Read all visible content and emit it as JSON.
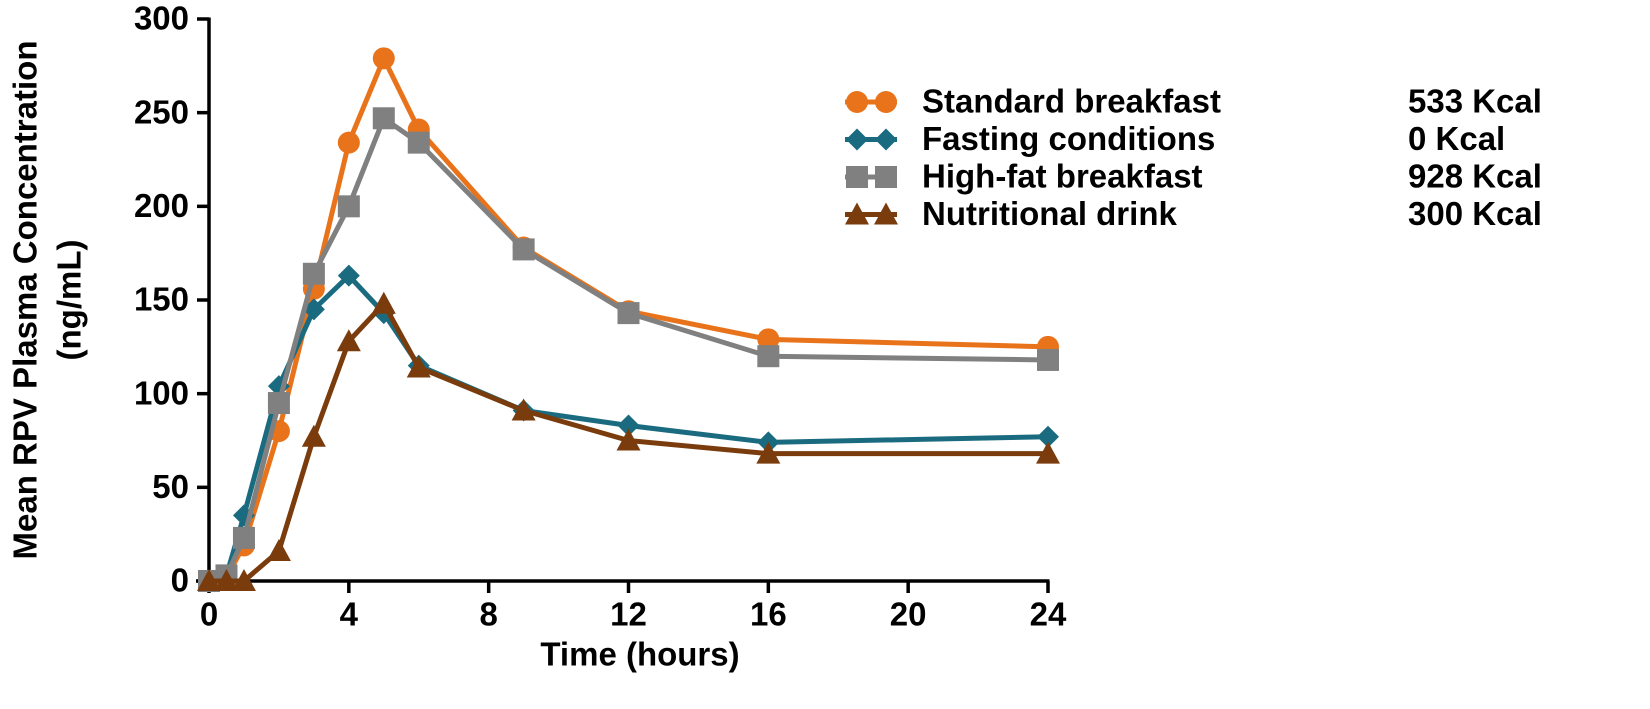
{
  "chart_data": {
    "type": "line",
    "xlabel": "Time (hours)",
    "ylabel": [
      "Mean RPV Plasma Concentration",
      "(ng/mL)"
    ],
    "xlim": [
      0,
      24
    ],
    "xticks": [
      0,
      4,
      8,
      12,
      16,
      20,
      24
    ],
    "ylim": [
      0,
      300
    ],
    "yticks": [
      0,
      50,
      100,
      150,
      200,
      250,
      300
    ],
    "x": [
      0,
      0.5,
      1,
      2,
      3,
      4,
      5,
      6,
      9,
      12,
      16,
      24
    ],
    "series": [
      {
        "name": "Standard breakfast",
        "energy": "533 Kcal",
        "color": "#e8731a",
        "marker": "circle",
        "values": [
          0,
          2,
          19,
          80,
          156,
          234,
          279,
          241,
          178,
          144,
          129,
          125
        ]
      },
      {
        "name": "Fasting conditions",
        "energy": "0 Kcal",
        "color": "#1b6b80",
        "marker": "diamond",
        "values": [
          0,
          3,
          35,
          104,
          145,
          163,
          143,
          115,
          91,
          83,
          74,
          77
        ]
      },
      {
        "name": "High-fat breakfast",
        "energy": "928 Kcal",
        "color": "#808080",
        "marker": "square",
        "values": [
          0,
          3,
          23,
          95,
          164,
          200,
          247,
          234,
          177,
          143,
          120,
          118
        ]
      },
      {
        "name": "Nutritional drink",
        "energy": "300 Kcal",
        "color": "#7a3c0c",
        "marker": "triangle",
        "values": [
          0,
          0,
          0,
          16,
          77,
          128,
          148,
          114,
          91,
          75,
          68,
          68
        ]
      }
    ]
  }
}
